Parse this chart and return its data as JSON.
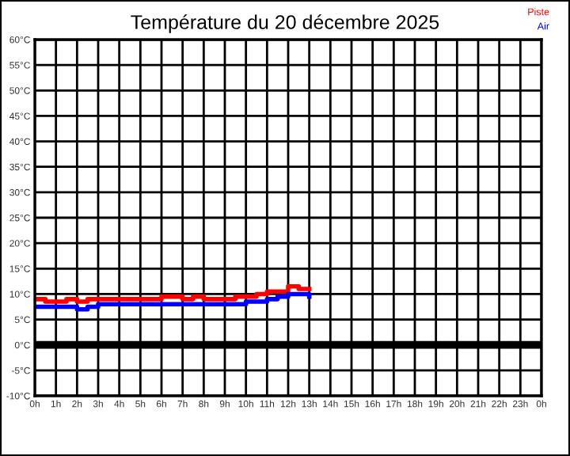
{
  "chart_data": {
    "type": "step",
    "title": "Température du 20 décembre 2025",
    "x": [
      "2025-12-20T00:00",
      "2025-12-20T00:30",
      "2025-12-20T01:00",
      "2025-12-20T01:30",
      "2025-12-20T02:00",
      "2025-12-20T02:30",
      "2025-12-20T03:00",
      "2025-12-20T03:30",
      "2025-12-20T04:00",
      "2025-12-20T04:30",
      "2025-12-20T05:00",
      "2025-12-20T05:30",
      "2025-12-20T06:00",
      "2025-12-20T06:30",
      "2025-12-20T07:00",
      "2025-12-20T07:30",
      "2025-12-20T08:00",
      "2025-12-20T08:30",
      "2025-12-20T09:00",
      "2025-12-20T09:30",
      "2025-12-20T10:00",
      "2025-12-20T10:30",
      "2025-12-20T11:00",
      "2025-12-20T11:30",
      "2025-12-20T12:00",
      "2025-12-20T12:30",
      "2025-12-20T13:00"
    ],
    "series": [
      {
        "name": "Piste",
        "color": "#ff0000",
        "values": [
          9,
          8.5,
          8.5,
          9,
          8.5,
          9,
          9,
          9,
          9,
          9,
          9,
          9,
          9.5,
          9.5,
          9,
          9.5,
          9,
          9,
          9,
          9.5,
          9.5,
          10,
          10.5,
          10.5,
          11.5,
          11,
          11
        ]
      },
      {
        "name": "Air",
        "color": "#0000ff",
        "values": [
          7.5,
          7.5,
          7.5,
          7.5,
          7,
          7.5,
          8,
          8,
          8,
          8,
          8,
          8,
          8,
          8,
          8,
          8,
          8,
          8,
          8,
          8,
          8.5,
          8.5,
          9,
          9.5,
          10,
          10,
          9.5
        ]
      }
    ],
    "xlim": [
      "2025-12-20T00:00",
      "2025-12-21T00:00"
    ],
    "xticks": [
      {
        "value": "2025-12-20T00:00",
        "label": "0h"
      },
      {
        "value": "2025-12-20T01:00",
        "label": "1h"
      },
      {
        "value": "2025-12-20T02:00",
        "label": "2h"
      },
      {
        "value": "2025-12-20T03:00",
        "label": "3h"
      },
      {
        "value": "2025-12-20T04:00",
        "label": "4h"
      },
      {
        "value": "2025-12-20T05:00",
        "label": "5h"
      },
      {
        "value": "2025-12-20T06:00",
        "label": "6h"
      },
      {
        "value": "2025-12-20T07:00",
        "label": "7h"
      },
      {
        "value": "2025-12-20T08:00",
        "label": "8h"
      },
      {
        "value": "2025-12-20T09:00",
        "label": "9h"
      },
      {
        "value": "2025-12-20T10:00",
        "label": "10h"
      },
      {
        "value": "2025-12-20T11:00",
        "label": "11h"
      },
      {
        "value": "2025-12-20T12:00",
        "label": "12h"
      },
      {
        "value": "2025-12-20T13:00",
        "label": "13h"
      },
      {
        "value": "2025-12-20T14:00",
        "label": "14h"
      },
      {
        "value": "2025-12-20T15:00",
        "label": "15h"
      },
      {
        "value": "2025-12-20T16:00",
        "label": "16h"
      },
      {
        "value": "2025-12-20T17:00",
        "label": "17h"
      },
      {
        "value": "2025-12-20T18:00",
        "label": "18h"
      },
      {
        "value": "2025-12-20T19:00",
        "label": "19h"
      },
      {
        "value": "2025-12-20T20:00",
        "label": "20h"
      },
      {
        "value": "2025-12-20T21:00",
        "label": "21h"
      },
      {
        "value": "2025-12-20T22:00",
        "label": "22h"
      },
      {
        "value": "2025-12-20T23:00",
        "label": "23h"
      },
      {
        "value": "2025-12-21T00:00",
        "label": "0h"
      }
    ],
    "ylim": [
      -10,
      60
    ],
    "yticks": [
      {
        "value": -10,
        "label": "-10°C"
      },
      {
        "value": -5,
        "label": "-5°C"
      },
      {
        "value": 0,
        "label": "0°C"
      },
      {
        "value": 5,
        "label": "5°C"
      },
      {
        "value": 10,
        "label": "10°C"
      },
      {
        "value": 15,
        "label": "15°C"
      },
      {
        "value": 20,
        "label": "20°C"
      },
      {
        "value": 25,
        "label": "25°C"
      },
      {
        "value": 30,
        "label": "30°C"
      },
      {
        "value": 35,
        "label": "35°C"
      },
      {
        "value": 40,
        "label": "40°C"
      },
      {
        "value": 45,
        "label": "45°C"
      },
      {
        "value": 50,
        "label": "50°C"
      },
      {
        "value": 55,
        "label": "55°C"
      },
      {
        "value": 60,
        "label": "60°C"
      }
    ],
    "ref_lines": [
      {
        "axis": "y",
        "value": 0,
        "color": "#000000"
      }
    ],
    "grid": true,
    "legend": "top right"
  }
}
